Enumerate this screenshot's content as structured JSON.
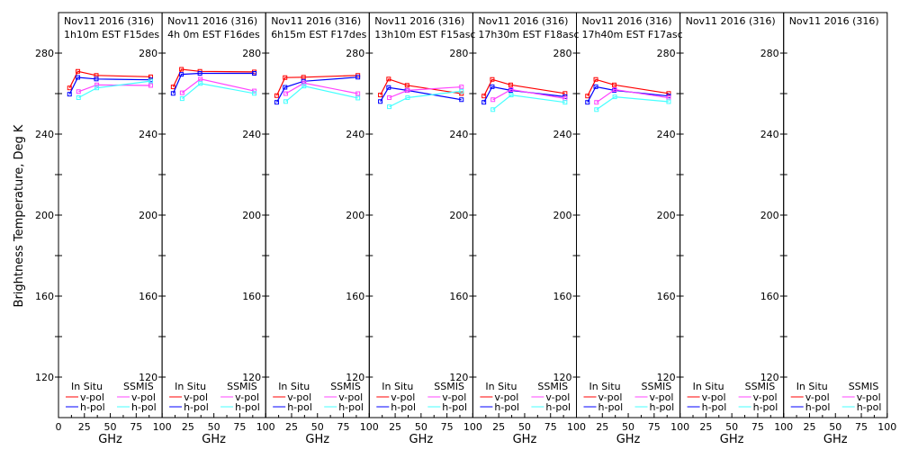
{
  "chart_data": {
    "type": "line",
    "ylabel": "Brightness Temperature, Deg K",
    "xlabel": "GHz",
    "ylim": [
      100,
      300
    ],
    "xlim": [
      0,
      100
    ],
    "yticks": [
      120,
      160,
      200,
      240,
      280
    ],
    "xticks": [
      0,
      25,
      50,
      75,
      100
    ],
    "grid": false,
    "legend": {
      "placement": "bottom",
      "groups": [
        "In Situ",
        "SSMIS"
      ],
      "entries": [
        {
          "group": "In Situ",
          "label": "v-pol",
          "color": "#ff0000"
        },
        {
          "group": "In Situ",
          "label": "h-pol",
          "color": "#0000ff"
        },
        {
          "group": "SSMIS",
          "label": "v-pol",
          "color": "#ff44ff"
        },
        {
          "group": "SSMIS",
          "label": "h-pol",
          "color": "#44ffff"
        }
      ]
    },
    "insitu_freqs": [
      10.65,
      18.7,
      36.5,
      89.0
    ],
    "ssmis_freqs": [
      19.35,
      37.0,
      89.0
    ],
    "panels": [
      {
        "title1": "Nov11 2016 (316)",
        "title2": "1h10m EST F15des",
        "insitu_v": [
          262.8,
          271.0,
          269.0,
          268.3
        ],
        "insitu_h": [
          259.7,
          268.0,
          267.2,
          266.8
        ],
        "ssmis_v": [
          261.0,
          264.3,
          264.0
        ],
        "ssmis_h": [
          258.0,
          262.8,
          266.2
        ]
      },
      {
        "title1": "Nov11 2016 (316)",
        "title2": "4h 0m EST F16des",
        "insitu_v": [
          263.3,
          272.0,
          271.0,
          270.7
        ],
        "insitu_h": [
          260.1,
          269.5,
          270.0,
          270.0
        ],
        "ssmis_v": [
          260.4,
          267.2,
          261.3
        ],
        "ssmis_h": [
          257.5,
          265.0,
          260.1
        ]
      },
      {
        "title1": "Nov11 2016 (316)",
        "title2": "6h15m EST F17des",
        "insitu_v": [
          259.0,
          267.9,
          268.1,
          269.0
        ],
        "insitu_h": [
          255.7,
          263.1,
          266.1,
          268.1
        ],
        "ssmis_v": [
          260.0,
          265.2,
          260.0
        ],
        "ssmis_h": [
          256.1,
          263.7,
          257.8
        ]
      },
      {
        "title1": "Nov11 2016 (316)",
        "title2": "13h10m EST F15asc",
        "insitu_v": [
          259.3,
          267.2,
          264.1,
          260.0
        ],
        "insitu_h": [
          256.1,
          263.0,
          261.6,
          257.0
        ],
        "ssmis_v": [
          258.0,
          261.6,
          263.3
        ],
        "ssmis_h": [
          253.5,
          258.0,
          261.2
        ]
      },
      {
        "title1": "Nov11 2016 (316)",
        "title2": "17h30m EST F18asc",
        "insitu_v": [
          258.8,
          267.0,
          264.3,
          260.1
        ],
        "insitu_h": [
          255.7,
          263.4,
          261.6,
          258.5
        ],
        "ssmis_v": [
          257.0,
          262.0,
          257.6
        ],
        "ssmis_h": [
          252.1,
          259.3,
          255.7
        ]
      },
      {
        "title1": "Nov11 2016 (316)",
        "title2": "17h40m EST F17asc",
        "insitu_v": [
          258.8,
          267.0,
          264.3,
          260.1
        ],
        "insitu_h": [
          255.7,
          263.4,
          261.6,
          258.8
        ],
        "ssmis_v": [
          255.7,
          262.0,
          257.9
        ],
        "ssmis_h": [
          252.1,
          258.4,
          256.0
        ]
      },
      {
        "title1": "Nov11 2016 (316)",
        "title2": ""
      },
      {
        "title1": "Nov11 2016 (316)",
        "title2": ""
      }
    ]
  }
}
